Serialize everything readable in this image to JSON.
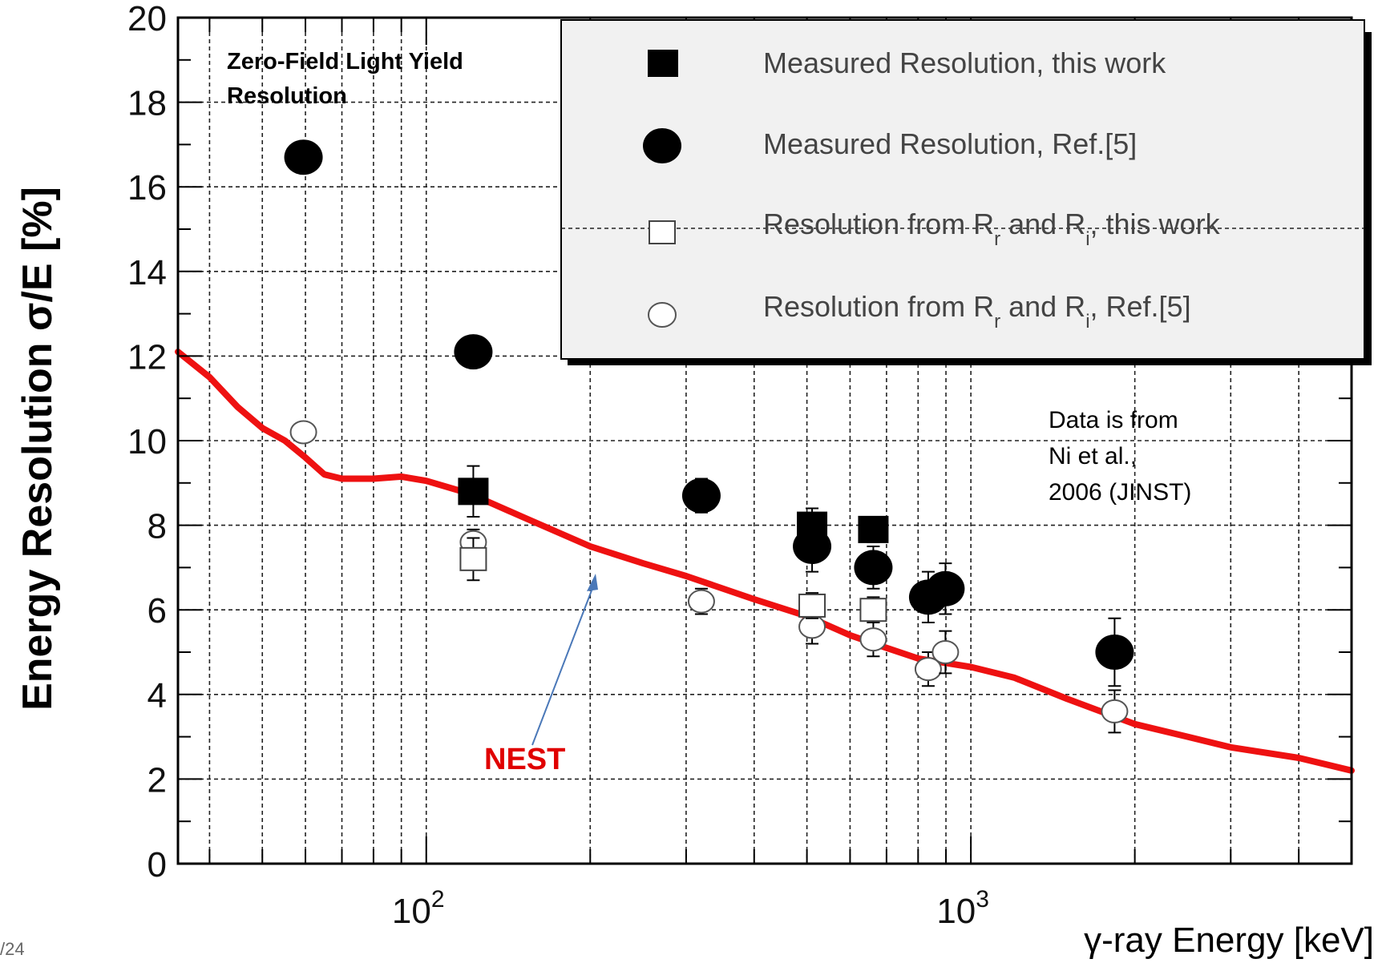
{
  "page_number": "/24",
  "annotation": {
    "line1": "Zero-Field Light Yield",
    "line2": "Resolution"
  },
  "note": {
    "line1": "Data is from",
    "line2": "Ni et al.,",
    "line3": "2006 (JINST)"
  },
  "nest_label": "NEST",
  "colors": {
    "nest": "#ee1111",
    "arrow": "#4a78b8",
    "markers": "#000000",
    "legend_bg": "#f1f1f1"
  },
  "chart_data": {
    "type": "scatter",
    "xlabel": "γ-ray Energy [keV]",
    "ylabel": "Energy Resolution σ/E [%]",
    "xscale": "log",
    "xlim": [
      35,
      5000
    ],
    "ylim": [
      0,
      20
    ],
    "x_ticks": [
      {
        "value": 100,
        "base": "10",
        "exp": "2"
      },
      {
        "value": 1000,
        "base": "10",
        "exp": "3"
      }
    ],
    "y_ticks": [
      0,
      2,
      4,
      6,
      8,
      10,
      12,
      14,
      16,
      18,
      20
    ],
    "grid": true,
    "legend_position": "top-right",
    "series": [
      {
        "name": "Measured Resolution, this work",
        "marker": "filled-square",
        "points": [
          [
            122,
            8.8,
            0.6
          ],
          [
            511,
            8.0,
            0.4
          ],
          [
            662,
            7.9,
            0.3
          ]
        ]
      },
      {
        "name": "Measured Resolution, Ref.[5]",
        "marker": "filled-circle",
        "points": [
          [
            59.5,
            16.7,
            0.3
          ],
          [
            122,
            12.1,
            0.3
          ],
          [
            320,
            8.7,
            0.4
          ],
          [
            511,
            7.5,
            0.6
          ],
          [
            662,
            7.0,
            0.5
          ],
          [
            835,
            6.3,
            0.6
          ],
          [
            898,
            6.5,
            0.6
          ],
          [
            1836,
            5.0,
            0.8
          ]
        ]
      },
      {
        "name": "Resolution from R_r and R_i, this work",
        "marker": "open-square",
        "points": [
          [
            122,
            7.2,
            0.5
          ],
          [
            511,
            6.1,
            0.3
          ],
          [
            662,
            6.0,
            0.3
          ]
        ]
      },
      {
        "name": "Resolution from R_r and R_i, Ref.[5]",
        "marker": "open-circle",
        "points": [
          [
            59.5,
            10.2,
            0.2
          ],
          [
            122,
            7.6,
            0.3
          ],
          [
            320,
            6.2,
            0.3
          ],
          [
            511,
            5.6,
            0.4
          ],
          [
            662,
            5.3,
            0.4
          ],
          [
            835,
            4.6,
            0.4
          ],
          [
            898,
            5.0,
            0.5
          ],
          [
            1836,
            3.6,
            0.5
          ]
        ]
      }
    ],
    "curve": {
      "name": "NEST",
      "points": [
        [
          35,
          12.1
        ],
        [
          40,
          11.5
        ],
        [
          45,
          10.8
        ],
        [
          50,
          10.3
        ],
        [
          55,
          10.0
        ],
        [
          60,
          9.6
        ],
        [
          65,
          9.2
        ],
        [
          70,
          9.1
        ],
        [
          80,
          9.1
        ],
        [
          90,
          9.15
        ],
        [
          100,
          9.05
        ],
        [
          120,
          8.75
        ],
        [
          150,
          8.2
        ],
        [
          200,
          7.5
        ],
        [
          250,
          7.1
        ],
        [
          300,
          6.8
        ],
        [
          400,
          6.25
        ],
        [
          500,
          5.85
        ],
        [
          600,
          5.4
        ],
        [
          700,
          5.1
        ],
        [
          800,
          4.85
        ],
        [
          1000,
          4.65
        ],
        [
          1200,
          4.4
        ],
        [
          1500,
          3.9
        ],
        [
          2000,
          3.3
        ],
        [
          2500,
          3.0
        ],
        [
          3000,
          2.75
        ],
        [
          4000,
          2.5
        ],
        [
          5000,
          2.2
        ]
      ]
    }
  }
}
